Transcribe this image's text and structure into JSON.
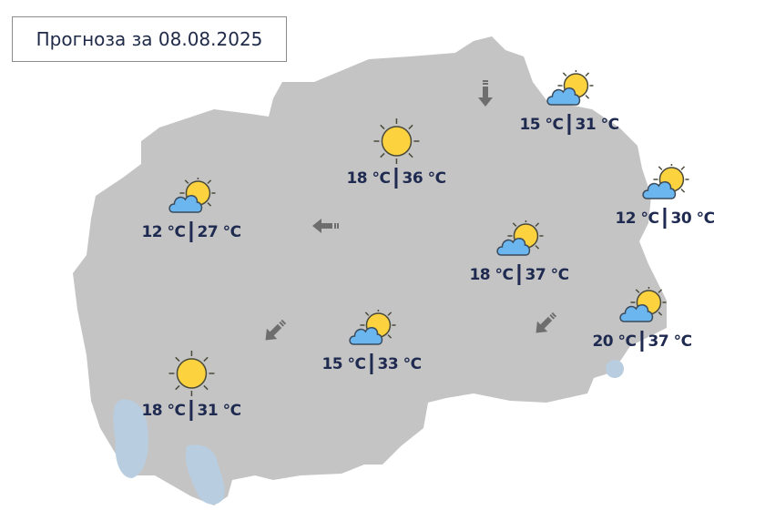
{
  "header": {
    "title": "Прогноза за 08.08.2025"
  },
  "colors": {
    "land": "#c4c4c4",
    "lake": "#b8cde0",
    "text": "#1f2a50",
    "sun": "#fcd23f",
    "cloud": "#6cb6f0",
    "arrow": "#6e6e6e"
  },
  "forecasts": [
    {
      "icon": "partly-cloudy-icon",
      "min": "12 °C",
      "max": "27 °C"
    },
    {
      "icon": "sun-icon",
      "min": "18 °C",
      "max": "36 °C"
    },
    {
      "icon": "partly-cloudy-icon",
      "min": "15 °C",
      "max": "31 °C"
    },
    {
      "icon": "partly-cloudy-icon",
      "min": "12 °C",
      "max": "30 °C"
    },
    {
      "icon": "partly-cloudy-icon",
      "min": "18 °C",
      "max": "37 °C"
    },
    {
      "icon": "partly-cloudy-icon",
      "min": "20 °C",
      "max": "37 °C"
    },
    {
      "icon": "partly-cloudy-icon",
      "min": "15 °C",
      "max": "33 °C"
    },
    {
      "icon": "sun-icon",
      "min": "18 °C",
      "max": "31 °C"
    }
  ],
  "wind": [
    {
      "direction": "south"
    },
    {
      "direction": "west"
    },
    {
      "direction": "southwest"
    },
    {
      "direction": "southwest"
    }
  ]
}
